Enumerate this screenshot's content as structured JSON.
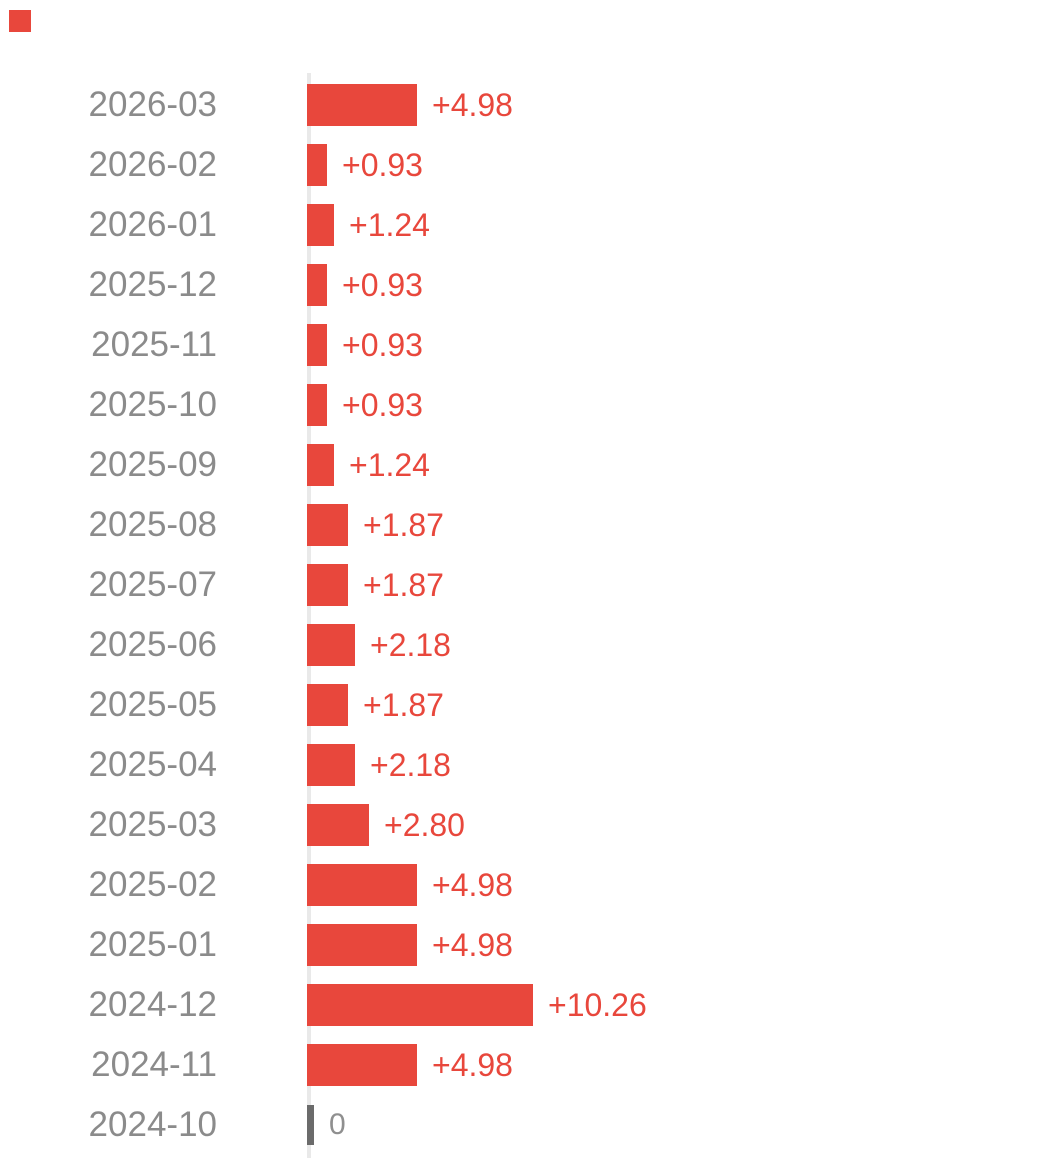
{
  "chart_data": {
    "type": "bar",
    "orientation": "horizontal",
    "title": "",
    "xlabel": "",
    "ylabel": "",
    "grid": false,
    "legend_position": "none",
    "xlim": [
      0,
      10.26
    ],
    "categories": [
      "2026-03",
      "2026-02",
      "2026-01",
      "2025-12",
      "2025-11",
      "2025-10",
      "2025-09",
      "2025-08",
      "2025-07",
      "2025-06",
      "2025-05",
      "2025-04",
      "2025-03",
      "2025-02",
      "2025-01",
      "2024-12",
      "2024-11",
      "2024-10"
    ],
    "values": [
      4.98,
      0.93,
      1.24,
      0.93,
      0.93,
      0.93,
      1.24,
      1.87,
      1.87,
      2.18,
      1.87,
      2.18,
      2.8,
      4.98,
      4.98,
      10.26,
      4.98,
      0
    ],
    "value_labels": [
      "+4.98",
      "+0.93",
      "+1.24",
      "+0.93",
      "+0.93",
      "+0.93",
      "+1.24",
      "+1.87",
      "+1.87",
      "+2.18",
      "+1.87",
      "+2.18",
      "+2.80",
      "+4.98",
      "+4.98",
      "+10.26",
      "+4.98",
      "0"
    ],
    "colors": {
      "bar": "#E8473C",
      "value_label": "#E8473C",
      "category_label": "#8B8B8B",
      "zero_value_label": "#8F8F8F",
      "zero_marker": "#6B6B6B",
      "axis_line": "#E9E9E9",
      "series_swatch": "#E8473C",
      "background": "#FFFFFF"
    }
  }
}
